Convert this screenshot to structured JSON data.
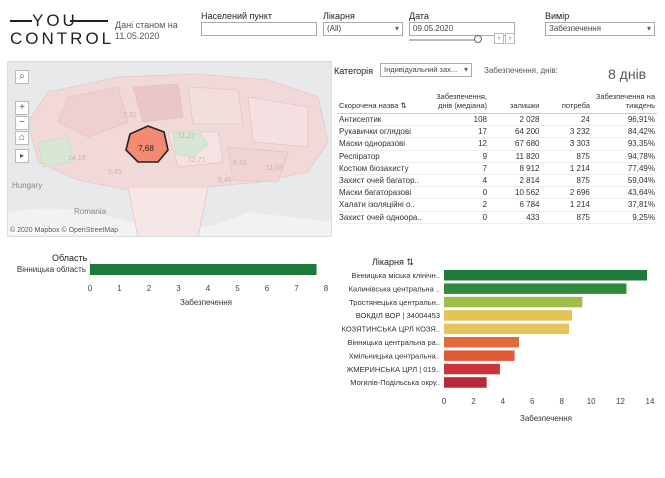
{
  "logo": {
    "line1": "YOU",
    "line2": "CONTROL"
  },
  "data_as_of": "Дані станом на 11.05.2020",
  "filters": {
    "settlement": {
      "label": "Населений пункт",
      "value": ""
    },
    "hospital": {
      "label": "Лікарня",
      "value": "(All)"
    },
    "date": {
      "label": "Дата",
      "value": "09.05.2020"
    },
    "measure": {
      "label": "Вимір",
      "value": "Забезпечення"
    }
  },
  "map": {
    "region_value": "7,68",
    "labels": [
      "Hungary",
      "Romania"
    ],
    "attribution": "© 2020 Mapbox © OpenStreetMap",
    "faded_values": [
      "14,19",
      "12,71",
      "8,43",
      "5,45",
      "11,55",
      "6,45",
      "11,27",
      "7,31"
    ]
  },
  "category": {
    "label": "Категорія",
    "value": "Індивідуальний зах...",
    "days_label": "Забезпечення, днів:",
    "days_value": "8 днів"
  },
  "table": {
    "headers": [
      "Скорочена назва",
      "Забезпечення, днів (медіана)",
      "залишки",
      "потреба",
      "Забезпечення на тиждень"
    ],
    "rows": [
      [
        "Антисептик",
        "108",
        "2 028",
        "24",
        "96,91%"
      ],
      [
        "Рукавички оглядові",
        "17",
        "64 200",
        "3 232",
        "84,42%"
      ],
      [
        "Маски одноразові",
        "12",
        "67 680",
        "3 303",
        "93,35%"
      ],
      [
        "Респіратор",
        "9",
        "11 820",
        "875",
        "94,78%"
      ],
      [
        "Костюм біозахисту",
        "7",
        "8 912",
        "1 214",
        "77,49%"
      ],
      [
        "Захист очей багатор..",
        "4",
        "2 814",
        "875",
        "59,04%"
      ],
      [
        "Маски багаторазові",
        "0",
        "10 562",
        "2 696",
        "43,64%"
      ],
      [
        "Халати ізоляційні о..",
        "2",
        "6 784",
        "1 214",
        "37,81%"
      ],
      [
        "Захист очей одноора..",
        "0",
        "433",
        "875",
        "9,25%"
      ]
    ]
  },
  "oblast_chart": {
    "title": "Область",
    "xlabel": "Забезпечення",
    "chart_data": {
      "type": "bar",
      "categories": [
        "Вінницька область"
      ],
      "values": [
        7.68
      ],
      "xlim": [
        0,
        8
      ],
      "ticks": [
        "0",
        "1",
        "2",
        "3",
        "4",
        "5",
        "6",
        "7",
        "8"
      ],
      "color": "#1e7a3a"
    }
  },
  "hospital_chart": {
    "title": "Лікарня",
    "xlabel": "Забезпечення",
    "chart_data": {
      "type": "bar",
      "categories": [
        "Вінницька міська клінічн..",
        "Калинівська центральна ..",
        "Тростянецька центральн..",
        "ВОКДІЛ ВОР | 34004453",
        "КОЗЯТИНСЬКА ЦРЛ КОЗЯ..",
        "Вінницька центральна ра..",
        "Хмільницька центральна..",
        "ЖМЕРИНСЬКА ЦРЛ | 019..",
        "Могилів-Подільська окру.."
      ],
      "values": [
        13.8,
        12.4,
        9.4,
        8.7,
        8.5,
        5.1,
        4.8,
        3.8,
        2.9
      ],
      "colors": [
        "#1e7a3a",
        "#2f8a3c",
        "#9dbf4a",
        "#e3c456",
        "#e6c55a",
        "#e06a3a",
        "#e05a3a",
        "#c9353a",
        "#b8273a"
      ],
      "xlim": [
        0,
        14
      ],
      "ticks": [
        "0",
        "2",
        "4",
        "6",
        "8",
        "10",
        "12",
        "14"
      ]
    }
  }
}
